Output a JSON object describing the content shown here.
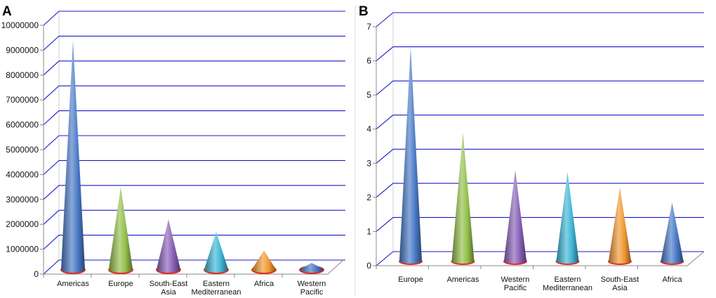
{
  "chart_data": [
    {
      "type": "bar",
      "style": "3d-cone",
      "panel_label": "A",
      "categories": [
        "Americas",
        "Europe",
        "South-East Asia",
        "Eastern Mediterranean",
        "Africa",
        "Western Pacific"
      ],
      "category_lines": [
        [
          "Americas"
        ],
        [
          "Europe"
        ],
        [
          "South-East",
          "Asia"
        ],
        [
          "Eastern",
          "Mediterranean"
        ],
        [
          "Africa"
        ],
        [
          "Western",
          "Pacific"
        ]
      ],
      "values": [
        9400000,
        3500000,
        2200000,
        1700000,
        950000,
        450000
      ],
      "ylim": [
        0,
        10000000
      ],
      "yticks": [
        0,
        1000000,
        2000000,
        3000000,
        4000000,
        5000000,
        6000000,
        7000000,
        8000000,
        9000000,
        10000000
      ],
      "ytick_labels": [
        "0",
        "1000000",
        "2000000",
        "3000000",
        "4000000",
        "5000000",
        "6000000",
        "7000000",
        "8000000",
        "9000000",
        "10000000"
      ],
      "grid": true,
      "title": "",
      "xlabel": "",
      "ylabel": ""
    },
    {
      "type": "bar",
      "style": "3d-cone",
      "panel_label": "B",
      "categories": [
        "Europe",
        "Americas",
        "Western Pacific",
        "Eastern Mediterranean",
        "South-East Asia",
        "Africa"
      ],
      "category_lines": [
        [
          "Europe"
        ],
        [
          "Americas"
        ],
        [
          "Western",
          "Pacific"
        ],
        [
          "Eastern",
          "Mediterranean"
        ],
        [
          "South-East",
          "Asia"
        ],
        [
          "Africa"
        ]
      ],
      "values": [
        6.4,
        3.9,
        2.8,
        2.75,
        2.3,
        1.85
      ],
      "ylim": [
        0,
        7
      ],
      "yticks": [
        0,
        1,
        2,
        3,
        4,
        5,
        6,
        7
      ],
      "ytick_labels": [
        "0",
        "1",
        "2",
        "3",
        "4",
        "5",
        "6",
        "7"
      ],
      "grid": true,
      "title": "",
      "xlabel": "",
      "ylabel": ""
    }
  ],
  "colors": {
    "grid": "#1a1acc",
    "axis": "#888888",
    "base": "#e8281a",
    "region": {
      "Americas": "#4a7ac8",
      "Europe": "#94c04a",
      "South-East Asia": "#8a62b8",
      "Eastern Mediterranean": "#3fb6d6",
      "Africa": "#f39a35",
      "Western Pacific": "#4a7ac8"
    },
    "panel_b": [
      "#4a7ac8",
      "#94c04a",
      "#8a62b8",
      "#3fb6d6",
      "#f39a35",
      "#4a7ac8"
    ]
  }
}
